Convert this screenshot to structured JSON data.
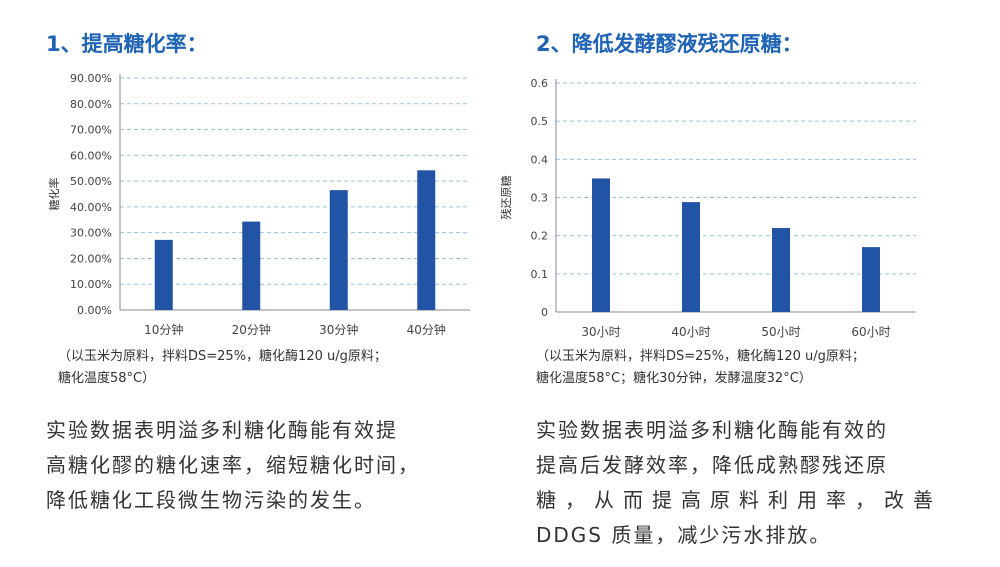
{
  "left": {
    "heading": "1、提高糖化率：",
    "note_lines": [
      "（以玉米为原料，拌料DS=25%，糖化酶120 u/g原料；",
      "糖化温度58°C）"
    ],
    "description_lines": [
      "实验数据表明溢多利糖化酶能有效提",
      "高糖化醪的糖化速率，缩短糖化时间，",
      "降低糖化工段微生物污染的发生。"
    ]
  },
  "right": {
    "heading": "2、降低发酵醪液残还原糖：",
    "note_lines": [
      "（以玉米为原料，拌料DS=25%，糖化酶120 u/g原料；",
      "糖化温度58°C；糖化30分钟，发酵温度32°C）"
    ],
    "description_lines": [
      "实验数据表明溢多利糖化酶能有效的",
      "提高后发酵效率，降低成熟醪残还原",
      "糖，从而提高原料利用率，改善",
      "DDGS 质量，减少污水排放。"
    ]
  },
  "chart_data": [
    {
      "type": "bar",
      "categories": [
        "10分钟",
        "20分钟",
        "30分钟",
        "40分钟"
      ],
      "values": [
        0.272,
        0.343,
        0.465,
        0.542
      ],
      "ylabel": "糖化率",
      "ylim": [
        0,
        0.9
      ],
      "yticks": [
        0,
        0.1,
        0.2,
        0.3,
        0.4,
        0.5,
        0.6,
        0.7,
        0.8,
        0.9
      ],
      "ytick_labels": [
        "0.00%",
        "10.00%",
        "20.00%",
        "30.00%",
        "40.00%",
        "50.00%",
        "60.00%",
        "70.00%",
        "80.00%",
        "90.00%"
      ],
      "grid": true,
      "bar_color": "#2254a6"
    },
    {
      "type": "bar",
      "categories": [
        "30小时",
        "40小时",
        "50小时",
        "60小时"
      ],
      "values": [
        0.35,
        0.288,
        0.22,
        0.17
      ],
      "ylabel": "残还原糖",
      "ylim": [
        0,
        0.6
      ],
      "yticks": [
        0,
        0.1,
        0.2,
        0.3,
        0.4,
        0.5,
        0.6
      ],
      "ytick_labels": [
        "0",
        "0.1",
        "0.2",
        "0.3",
        "0.4",
        "0.5",
        "0.6"
      ],
      "grid": true,
      "bar_color": "#2254a6"
    }
  ]
}
